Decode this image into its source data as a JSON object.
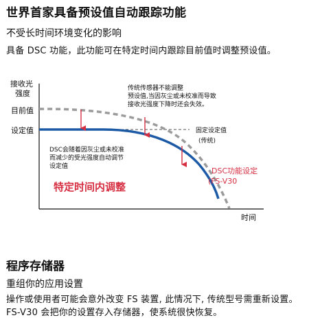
{
  "section1": {
    "title": "世界首家具备预设值自动跟踪功能",
    "subtitle": "不受长时间环境变化的影响",
    "description": "具备 DSC 功能，此功能可在特定时间内跟踪目前值时调整预设值。"
  },
  "chart": {
    "y_axis_label_line1": "接收光",
    "y_axis_label_line2": "强度",
    "x_axis_label": "时间",
    "label_current_value": "目前值",
    "label_set_value": "设定值",
    "note_traditional_line1": "传统传感器不能调整",
    "note_traditional_line2": "预设值,当因灰尘或未校准而导致",
    "note_traditional_line3": "接收光强度下降时还会失效。",
    "label_fixed_set_value": "固定设定值",
    "label_traditional": "(传统)",
    "note_dsc_line1": "DSC会随着因灰尘或未校准",
    "note_dsc_line2": "而减少的受光强度自动调节",
    "note_dsc_line3": "设定值",
    "highlight_text": "特定时间内调整",
    "dsc_label_line1": "DSC功能设定",
    "dsc_label_line2": "(FS-V30",
    "colors": {
      "dsc_curve": "#1c5aa6",
      "current_curve": "#9b9b9b",
      "arrow": "#d62f42",
      "highlight": "#d62f42",
      "fixed_line": "#555555"
    }
  },
  "section2": {
    "title": "程序存储器",
    "subtitle": "重组你的应用设置",
    "description": "操作或使用者可能会意外改变 FS 装置, 此情况下, 传统型号需重新设置。FS-V30 会把你的设置存入存储器，使系统很快恢复。"
  }
}
